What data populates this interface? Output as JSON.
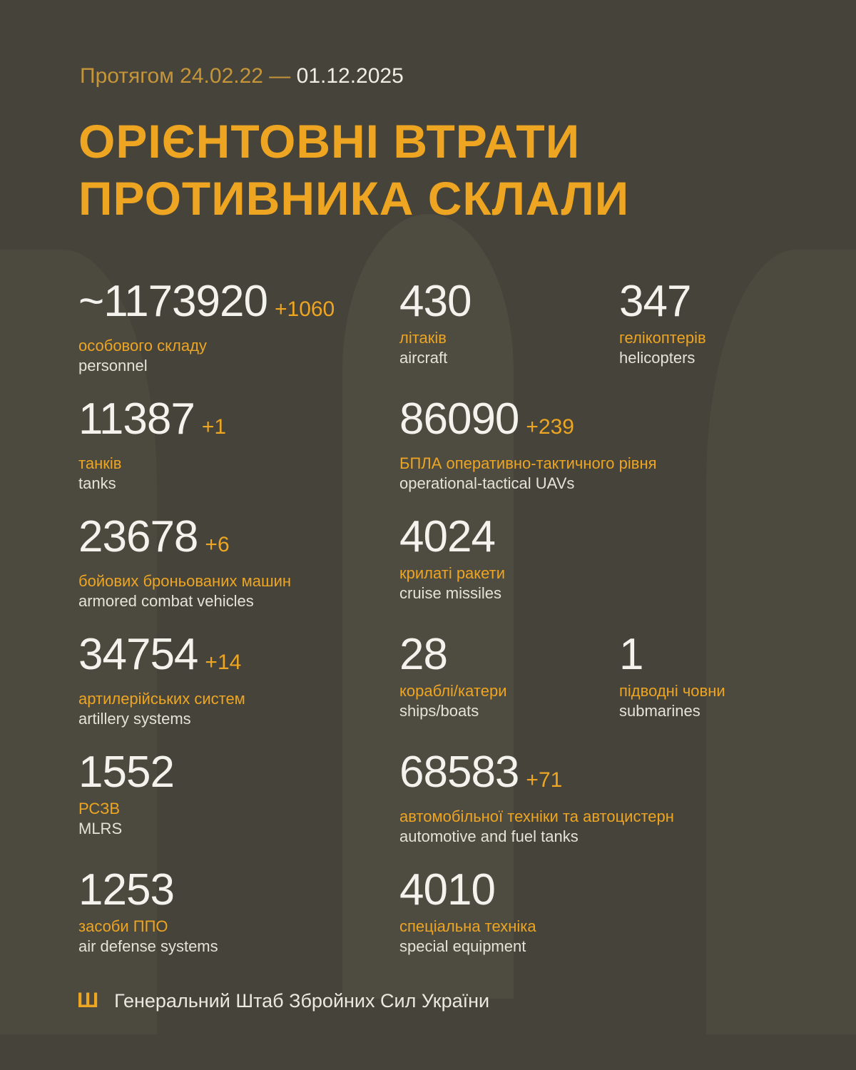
{
  "header": {
    "period_prefix": "Протягом 24.02.22 — ",
    "period_end": "01.12.2025"
  },
  "title": {
    "line1": "ОРІЄНТОВНІ ВТРАТИ",
    "line2": "ПРОТИВНИКА СКЛАЛИ"
  },
  "items": [
    {
      "value": "~1173920",
      "delta": "+1060",
      "ua": "особового складу",
      "en": "personnel"
    },
    {
      "value": "430",
      "delta": "",
      "ua": "літаків",
      "en": "aircraft"
    },
    {
      "value": "347",
      "delta": "",
      "ua": "гелікоптерів",
      "en": "helicopters"
    },
    {
      "value": "11387",
      "delta": "+1",
      "ua": "танків",
      "en": "tanks"
    },
    {
      "value": "86090",
      "delta": "+239",
      "ua": "БПЛА оперативно-тактичного рівня",
      "en": "operational-tactical UAVs"
    },
    {
      "value": "23678",
      "delta": "+6",
      "ua": "бойових броньованих машин",
      "en": "armored combat vehicles"
    },
    {
      "value": "4024",
      "delta": "",
      "ua": "крилаті ракети",
      "en": "cruise missiles"
    },
    {
      "value": "34754",
      "delta": "+14",
      "ua": "артилерійських систем",
      "en": "artillery systems"
    },
    {
      "value": "28",
      "delta": "",
      "ua": "кораблі/катери",
      "en": "ships/boats"
    },
    {
      "value": "1",
      "delta": "",
      "ua": "підводні човни",
      "en": "submarines"
    },
    {
      "value": "1552",
      "delta": "",
      "ua": "РСЗВ",
      "en": "MLRS"
    },
    {
      "value": "68583",
      "delta": "+71",
      "ua": "автомобільної техніки та автоцистерн",
      "en": "automotive and fuel tanks"
    },
    {
      "value": "1253",
      "delta": "",
      "ua": "засоби ППО",
      "en": "air defense systems"
    },
    {
      "value": "4010",
      "delta": "",
      "ua": "спеціальна техніка",
      "en": "special equipment"
    }
  ],
  "footer": {
    "icon": "trident-icon",
    "text": "Генеральний Штаб Збройних Сил України"
  },
  "colors": {
    "background": "#46433a",
    "accent": "#eda522",
    "text": "#f4f2ed"
  }
}
